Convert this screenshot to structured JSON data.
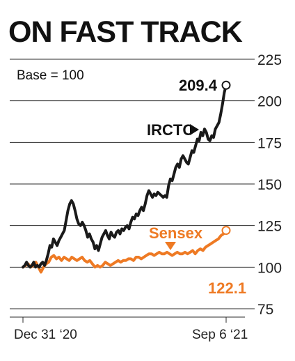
{
  "chart_data": {
    "type": "line",
    "title": "ON FAST TRACK",
    "note": "Base = 100",
    "x_tick_labels": [
      "Dec 31 ‘20",
      "Sep 6 ‘21"
    ],
    "y_tick_labels": [
      "225",
      "200",
      "175",
      "150",
      "125",
      "100",
      "75"
    ],
    "ylim": [
      75,
      225
    ],
    "grid": true,
    "colors": {
      "irctc": "#1a1a1a",
      "sensex": "#ee7a24"
    },
    "series": [
      {
        "name": "IRCTC",
        "end_label": "209.4",
        "values": [
          100,
          101,
          103,
          101,
          100,
          101,
          103,
          100,
          101,
          100,
          102,
          103,
          101,
          104,
          108,
          113,
          112,
          117,
          115,
          113,
          116,
          118,
          120,
          122,
          128,
          134,
          138,
          140,
          138,
          134,
          129,
          126,
          125,
          127,
          125,
          122,
          118,
          120,
          117,
          115,
          111,
          113,
          110,
          114,
          118,
          120,
          122,
          119,
          117,
          121,
          119,
          118,
          121,
          122,
          120,
          123,
          122,
          124,
          125,
          123,
          127,
          130,
          129,
          132,
          131,
          134,
          136,
          134,
          138,
          143,
          146,
          144,
          142,
          144,
          143,
          145,
          144,
          143,
          142,
          143,
          142,
          149,
          153,
          152,
          156,
          160,
          162,
          160,
          165,
          167,
          165,
          163,
          162,
          166,
          170,
          169,
          173,
          177,
          176,
          181,
          179,
          183,
          181,
          177,
          176,
          179,
          178,
          183,
          185,
          187,
          192,
          198,
          205,
          209.4
        ]
      },
      {
        "name": "Sensex",
        "end_label": "122.1",
        "values": [
          100,
          101,
          102,
          100,
          101,
          103,
          100,
          97,
          100,
          102,
          103,
          106,
          107,
          105,
          106,
          104,
          106,
          105,
          104,
          106,
          105,
          104,
          105,
          106,
          104,
          103,
          104,
          102,
          100,
          101,
          100,
          101,
          103,
          102,
          101,
          102,
          103,
          104,
          103,
          104,
          104,
          105,
          105,
          104,
          106,
          106,
          105,
          106,
          107,
          108,
          108,
          107,
          108,
          109,
          108,
          108,
          109,
          108,
          107,
          108,
          109,
          108,
          108,
          109,
          108,
          109,
          110,
          108,
          110,
          111,
          110,
          112,
          113,
          114,
          115,
          116,
          117,
          119,
          120,
          122.1
        ]
      }
    ]
  }
}
